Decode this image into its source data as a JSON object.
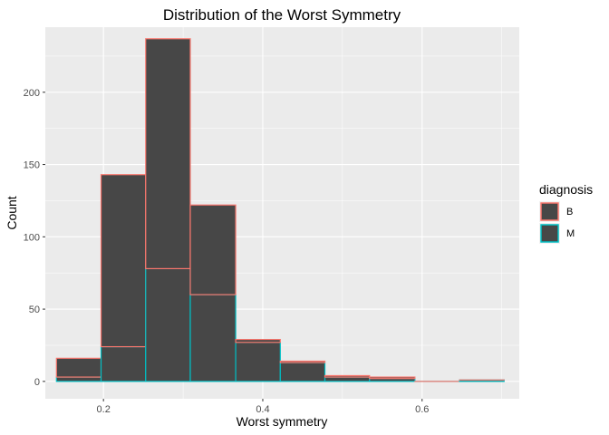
{
  "chart_data": {
    "type": "bar",
    "subtype": "stacked-histogram",
    "title": "Distribution of the Worst Symmetry",
    "xlabel": "Worst symmetry",
    "ylabel": "Count",
    "xlim": [
      0.127,
      0.722
    ],
    "ylim": [
      -12,
      245
    ],
    "x_ticks": [
      0.2,
      0.4,
      0.6
    ],
    "x_tick_labels": [
      "0.2",
      "0.4",
      "0.6"
    ],
    "y_ticks": [
      0,
      50,
      100,
      150,
      200
    ],
    "y_tick_labels": [
      "0",
      "50",
      "100",
      "150",
      "200"
    ],
    "bins": [
      [
        0.141,
        0.197
      ],
      [
        0.197,
        0.253
      ],
      [
        0.253,
        0.309
      ],
      [
        0.309,
        0.366
      ],
      [
        0.366,
        0.422
      ],
      [
        0.422,
        0.478
      ],
      [
        0.478,
        0.534
      ],
      [
        0.534,
        0.591
      ],
      [
        0.591,
        0.647
      ],
      [
        0.647,
        0.703
      ]
    ],
    "series": [
      {
        "name": "B",
        "values": [
          13,
          119,
          159,
          62,
          2,
          1,
          1,
          1,
          0,
          0
        ]
      },
      {
        "name": "M",
        "values": [
          3,
          24,
          78,
          60,
          27,
          13,
          3,
          2,
          0,
          1
        ]
      }
    ],
    "stack_order": [
      "M",
      "B"
    ],
    "fill_color": "#474747",
    "outline_colors": {
      "B": "#F8766D",
      "M": "#00BFC4"
    },
    "panel_background": "#EBEBEB",
    "grid": true,
    "legend": {
      "title": "diagnosis",
      "position": "right",
      "entries": [
        "B",
        "M"
      ]
    }
  }
}
